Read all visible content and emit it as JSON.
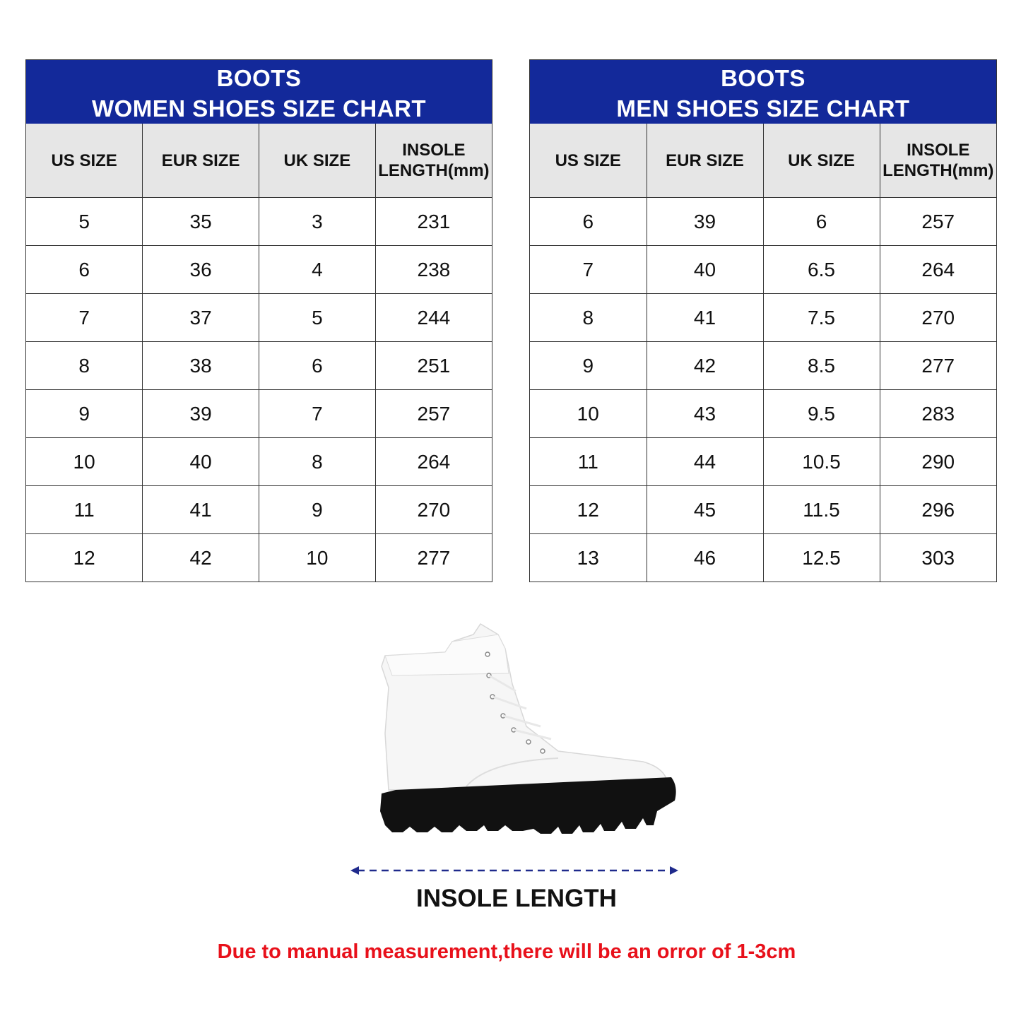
{
  "women": {
    "title_line1": "BOOTS",
    "title_line2": "WOMEN SHOES SIZE CHART",
    "headers": [
      "US SIZE",
      "EUR SIZE",
      "UK SIZE",
      "INSOLE LENGTH(mm)"
    ],
    "rows": [
      [
        "5",
        "35",
        "3",
        "231"
      ],
      [
        "6",
        "36",
        "4",
        "238"
      ],
      [
        "7",
        "37",
        "5",
        "244"
      ],
      [
        "8",
        "38",
        "6",
        "251"
      ],
      [
        "9",
        "39",
        "7",
        "257"
      ],
      [
        "10",
        "40",
        "8",
        "264"
      ],
      [
        "11",
        "41",
        "9",
        "270"
      ],
      [
        "12",
        "42",
        "10",
        "277"
      ]
    ]
  },
  "men": {
    "title_line1": "BOOTS",
    "title_line2": "MEN SHOES SIZE CHART",
    "headers": [
      "US SIZE",
      "EUR SIZE",
      "UK SIZE",
      "INSOLE LENGTH(mm)"
    ],
    "rows": [
      [
        "6",
        "39",
        "6",
        "257"
      ],
      [
        "7",
        "40",
        "6.5",
        "264"
      ],
      [
        "8",
        "41",
        "7.5",
        "270"
      ],
      [
        "9",
        "42",
        "8.5",
        "277"
      ],
      [
        "10",
        "43",
        "9.5",
        "283"
      ],
      [
        "11",
        "44",
        "10.5",
        "290"
      ],
      [
        "12",
        "45",
        "11.5",
        "296"
      ],
      [
        "13",
        "46",
        "12.5",
        "303"
      ]
    ]
  },
  "illustration": {
    "image": "white-lace-up-boot-black-sole",
    "measure_label": "INSOLE LENGTH"
  },
  "note": "Due to manual measurement,there will be an orror of 1-3cm",
  "colors": {
    "header_blue": "#13299a",
    "header_gray": "#e6e6e6",
    "note_red": "#e8101a",
    "arrow_blue": "#1f2a8c"
  }
}
